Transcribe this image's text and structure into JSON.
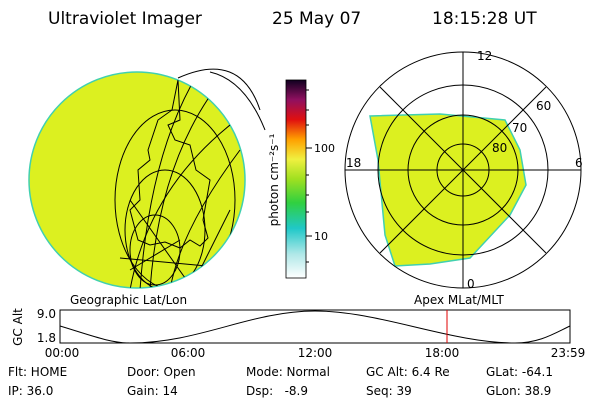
{
  "header": {
    "instrument": "Ultraviolet Imager",
    "date": "25 May 07",
    "time": "18:15:28 UT"
  },
  "colorbar": {
    "label": "photon cm⁻²s⁻¹",
    "ticks": [
      "100",
      "10"
    ]
  },
  "polar": {
    "mlt_labels": [
      "12",
      "18",
      "6",
      "0"
    ],
    "lat_labels": [
      "60",
      "70",
      "80"
    ]
  },
  "altitude_plot": {
    "left_title": "Geographic Lat/Lon",
    "right_title": "Apex MLat/MLT",
    "y_label": "GC Alt",
    "y_labels": [
      "9.0",
      "1.8"
    ],
    "x_labels": [
      "00:00",
      "06:00",
      "12:00",
      "18:00",
      "23:59"
    ]
  },
  "status": {
    "rows": [
      [
        "Flt: HOME",
        "Door: Open",
        "Mode: Normal",
        "GC Alt: 6.4 Re",
        "GLat: -64.1"
      ],
      [
        "IP: 36.0",
        "Gain: 14",
        "Dsp:   -8.9",
        "Seq: 39",
        "GLon: 38.9"
      ]
    ]
  }
}
